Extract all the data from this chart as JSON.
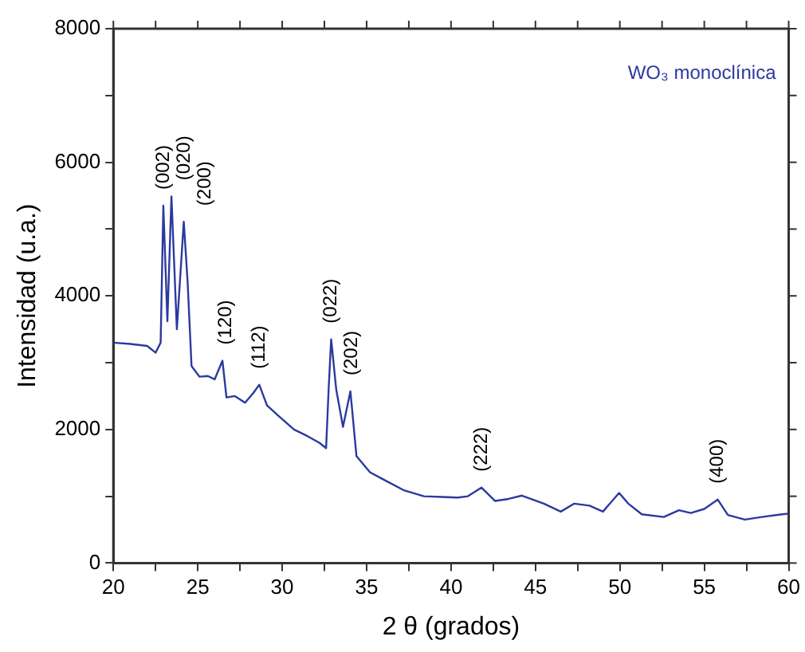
{
  "chart_data": {
    "type": "line",
    "xlabel": "2 θ (grados)",
    "ylabel": "Intensidad (u.a.)",
    "xlim": [
      20,
      60
    ],
    "ylim": [
      0,
      8000
    ],
    "xticks": [
      20,
      {
        "value": 22.5,
        "label": null
      },
      25,
      {
        "value": 27.5,
        "label": null
      },
      30,
      {
        "value": 32.5,
        "label": null
      },
      35,
      {
        "value": 37.5,
        "label": null
      },
      40,
      {
        "value": 42.5,
        "label": null
      },
      45,
      {
        "value": 47.5,
        "label": null
      },
      50,
      {
        "value": 52.5,
        "label": null
      },
      55,
      {
        "value": 57.5,
        "label": null
      },
      60
    ],
    "yticks": [
      0,
      {
        "value": 1000,
        "label": null
      },
      2000,
      {
        "value": 3000,
        "label": null
      },
      4000,
      {
        "value": 5000,
        "label": null
      },
      6000,
      {
        "value": 7000,
        "label": null
      },
      8000
    ],
    "grid": false,
    "legend": "top right",
    "marker": "none",
    "line_style": "solid",
    "series": [
      {
        "name": "WO₃ monoclínica",
        "color": "#2b3a9e",
        "x": [
          20,
          21,
          22,
          22.5,
          22.8,
          22.96,
          23.2,
          23.44,
          23.76,
          24.17,
          24.4,
          24.63,
          25.1,
          25.6,
          26.0,
          26.46,
          26.7,
          27.2,
          27.8,
          28.3,
          28.64,
          29.1,
          29.8,
          30.7,
          31.5,
          32.2,
          32.6,
          32.75,
          32.9,
          33.2,
          33.6,
          34.04,
          34.4,
          35.2,
          36.0,
          37.2,
          38.4,
          39.5,
          40.4,
          41.0,
          41.8,
          42.6,
          43.4,
          44.2,
          45.5,
          46.5,
          47.3,
          48.2,
          49.0,
          49.95,
          50.5,
          51.3,
          52.6,
          53.5,
          54.2,
          55.0,
          55.8,
          56.4,
          57.4,
          58.4,
          59.6,
          60
        ],
        "values": [
          3300,
          3280,
          3250,
          3150,
          3300,
          5350,
          3620,
          5490,
          3500,
          5110,
          4200,
          2950,
          2790,
          2800,
          2750,
          3030,
          2480,
          2500,
          2400,
          2550,
          2670,
          2360,
          2200,
          2000,
          1900,
          1800,
          1720,
          2600,
          3350,
          2600,
          2040,
          2570,
          1600,
          1360,
          1250,
          1090,
          1000,
          990,
          980,
          1000,
          1130,
          930,
          960,
          1010,
          890,
          770,
          890,
          860,
          770,
          1050,
          890,
          730,
          690,
          790,
          750,
          810,
          950,
          720,
          650,
          690,
          730,
          740
        ]
      }
    ],
    "annotations": [
      {
        "text": "(002)",
        "x": 22.96,
        "y": 5350
      },
      {
        "text": "(020)",
        "x": 23.44,
        "y": 5490
      },
      {
        "text": "(200)",
        "x": 24.17,
        "y": 5110
      },
      {
        "text": "(120)",
        "x": 26.46,
        "y": 3030
      },
      {
        "text": "(112)",
        "x": 28.64,
        "y": 2670
      },
      {
        "text": "(022)",
        "x": 32.9,
        "y": 3350
      },
      {
        "text": "(202)",
        "x": 34.04,
        "y": 2570
      },
      {
        "text": "(222)",
        "x": 41.8,
        "y": 1130
      },
      {
        "text": "(400)",
        "x": 55.8,
        "y": 950
      }
    ]
  }
}
